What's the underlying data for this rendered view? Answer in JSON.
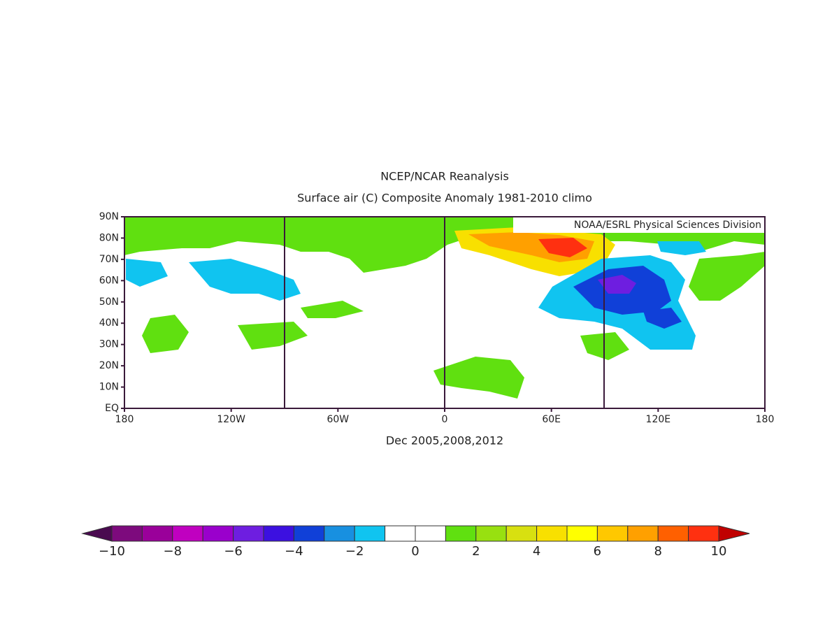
{
  "map": {
    "title": "NCEP/NCAR Reanalysis",
    "subtitle": "Surface air (C) Composite Anomaly 1981-2010 climo",
    "credit": "NOAA/ESRL Physical Sciences Division",
    "caption": "Dec 2005,2008,2012",
    "xlim": [
      -180,
      180
    ],
    "ylim": [
      0,
      90
    ],
    "xticks": [
      {
        "value": -180,
        "label": "180"
      },
      {
        "value": -120,
        "label": "120W"
      },
      {
        "value": -60,
        "label": "60W"
      },
      0,
      {
        "value": 60,
        "label": "60E"
      },
      {
        "value": 120,
        "label": "120E"
      },
      180
    ],
    "yticks": [
      {
        "value": 0,
        "label": "EQ"
      },
      {
        "value": 10,
        "label": "10N"
      },
      {
        "value": 20,
        "label": "20N"
      },
      {
        "value": 30,
        "label": "30N"
      },
      {
        "value": 40,
        "label": "40N"
      },
      {
        "value": 50,
        "label": "50N"
      },
      {
        "value": 60,
        "label": "60N"
      },
      {
        "value": 70,
        "label": "70N"
      },
      {
        "value": 80,
        "label": "80N"
      },
      {
        "value": 90,
        "label": "90N"
      }
    ],
    "colorbar": {
      "lim": [
        -10,
        10
      ],
      "under_color": "#4a0a50",
      "over_color": "#c00000",
      "colors": [
        "#7d0a7d",
        "#9a009a",
        "#c000c0",
        "#9a00cc",
        "#6e1ee0",
        "#3c10e0",
        "#1040d8",
        "#1890e0",
        "#10c4f0",
        "#ffffff",
        "#ffffff",
        "#60e010",
        "#98e010",
        "#d8e010",
        "#f8e000",
        "#ffff00",
        "#ffc800",
        "#ffa000",
        "#ff6000",
        "#ff3010"
      ],
      "ticks": [
        {
          "value": -10,
          "label": "−10"
        },
        {
          "value": -8,
          "label": "−8"
        },
        {
          "value": -6,
          "label": "−6"
        },
        {
          "value": -4,
          "label": "−4"
        },
        {
          "value": -2,
          "label": "−2"
        },
        0,
        2,
        4,
        6,
        8,
        10
      ]
    }
  }
}
